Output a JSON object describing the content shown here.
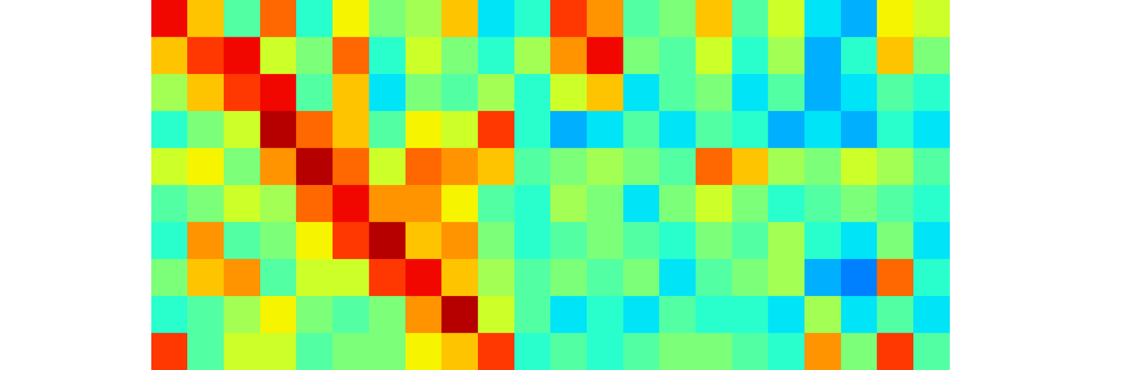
{
  "chart_data": {
    "type": "heatmap",
    "color": "jet",
    "tick_labels": false,
    "value_range": [
      0,
      1
    ],
    "cells": [
      [
        0.9,
        0.7,
        0.45,
        0.8,
        0.4,
        0.65,
        0.5,
        0.55,
        0.7,
        0.35,
        0.4,
        0.85,
        0.75,
        0.45,
        0.5,
        0.7,
        0.45,
        0.6,
        0.35,
        0.3,
        0.65,
        0.6
      ],
      [
        0.7,
        0.85,
        0.9,
        0.6,
        0.5,
        0.8,
        0.4,
        0.6,
        0.5,
        0.4,
        0.55,
        0.75,
        0.9,
        0.5,
        0.45,
        0.6,
        0.4,
        0.55,
        0.3,
        0.4,
        0.7,
        0.5
      ],
      [
        0.55,
        0.7,
        0.85,
        0.9,
        0.45,
        0.7,
        0.35,
        0.5,
        0.45,
        0.55,
        0.4,
        0.6,
        0.7,
        0.35,
        0.45,
        0.5,
        0.35,
        0.45,
        0.3,
        0.35,
        0.45,
        0.4
      ],
      [
        0.4,
        0.5,
        0.6,
        0.95,
        0.8,
        0.7,
        0.45,
        0.65,
        0.6,
        0.85,
        0.4,
        0.3,
        0.35,
        0.45,
        0.35,
        0.45,
        0.4,
        0.3,
        0.35,
        0.3,
        0.4,
        0.35
      ],
      [
        0.6,
        0.65,
        0.5,
        0.75,
        0.95,
        0.8,
        0.6,
        0.8,
        0.75,
        0.7,
        0.45,
        0.5,
        0.55,
        0.5,
        0.45,
        0.8,
        0.7,
        0.55,
        0.5,
        0.6,
        0.55,
        0.45
      ],
      [
        0.45,
        0.5,
        0.6,
        0.55,
        0.8,
        0.9,
        0.75,
        0.75,
        0.65,
        0.45,
        0.4,
        0.55,
        0.5,
        0.35,
        0.5,
        0.6,
        0.5,
        0.4,
        0.45,
        0.5,
        0.45,
        0.4
      ],
      [
        0.4,
        0.75,
        0.45,
        0.5,
        0.65,
        0.85,
        0.95,
        0.7,
        0.75,
        0.5,
        0.4,
        0.45,
        0.5,
        0.45,
        0.4,
        0.5,
        0.45,
        0.55,
        0.4,
        0.35,
        0.5,
        0.35
      ],
      [
        0.5,
        0.7,
        0.75,
        0.45,
        0.6,
        0.6,
        0.85,
        0.9,
        0.7,
        0.55,
        0.45,
        0.5,
        0.45,
        0.5,
        0.35,
        0.45,
        0.5,
        0.55,
        0.3,
        0.25,
        0.8,
        0.4
      ],
      [
        0.4,
        0.45,
        0.55,
        0.65,
        0.5,
        0.45,
        0.5,
        0.75,
        0.95,
        0.6,
        0.45,
        0.35,
        0.4,
        0.35,
        0.45,
        0.4,
        0.4,
        0.35,
        0.55,
        0.35,
        0.45,
        0.35
      ],
      [
        0.85,
        0.45,
        0.6,
        0.6,
        0.45,
        0.5,
        0.5,
        0.65,
        0.7,
        0.85,
        0.4,
        0.45,
        0.4,
        0.45,
        0.5,
        0.5,
        0.45,
        0.4,
        0.75,
        0.5,
        0.85,
        0.45
      ]
    ]
  }
}
